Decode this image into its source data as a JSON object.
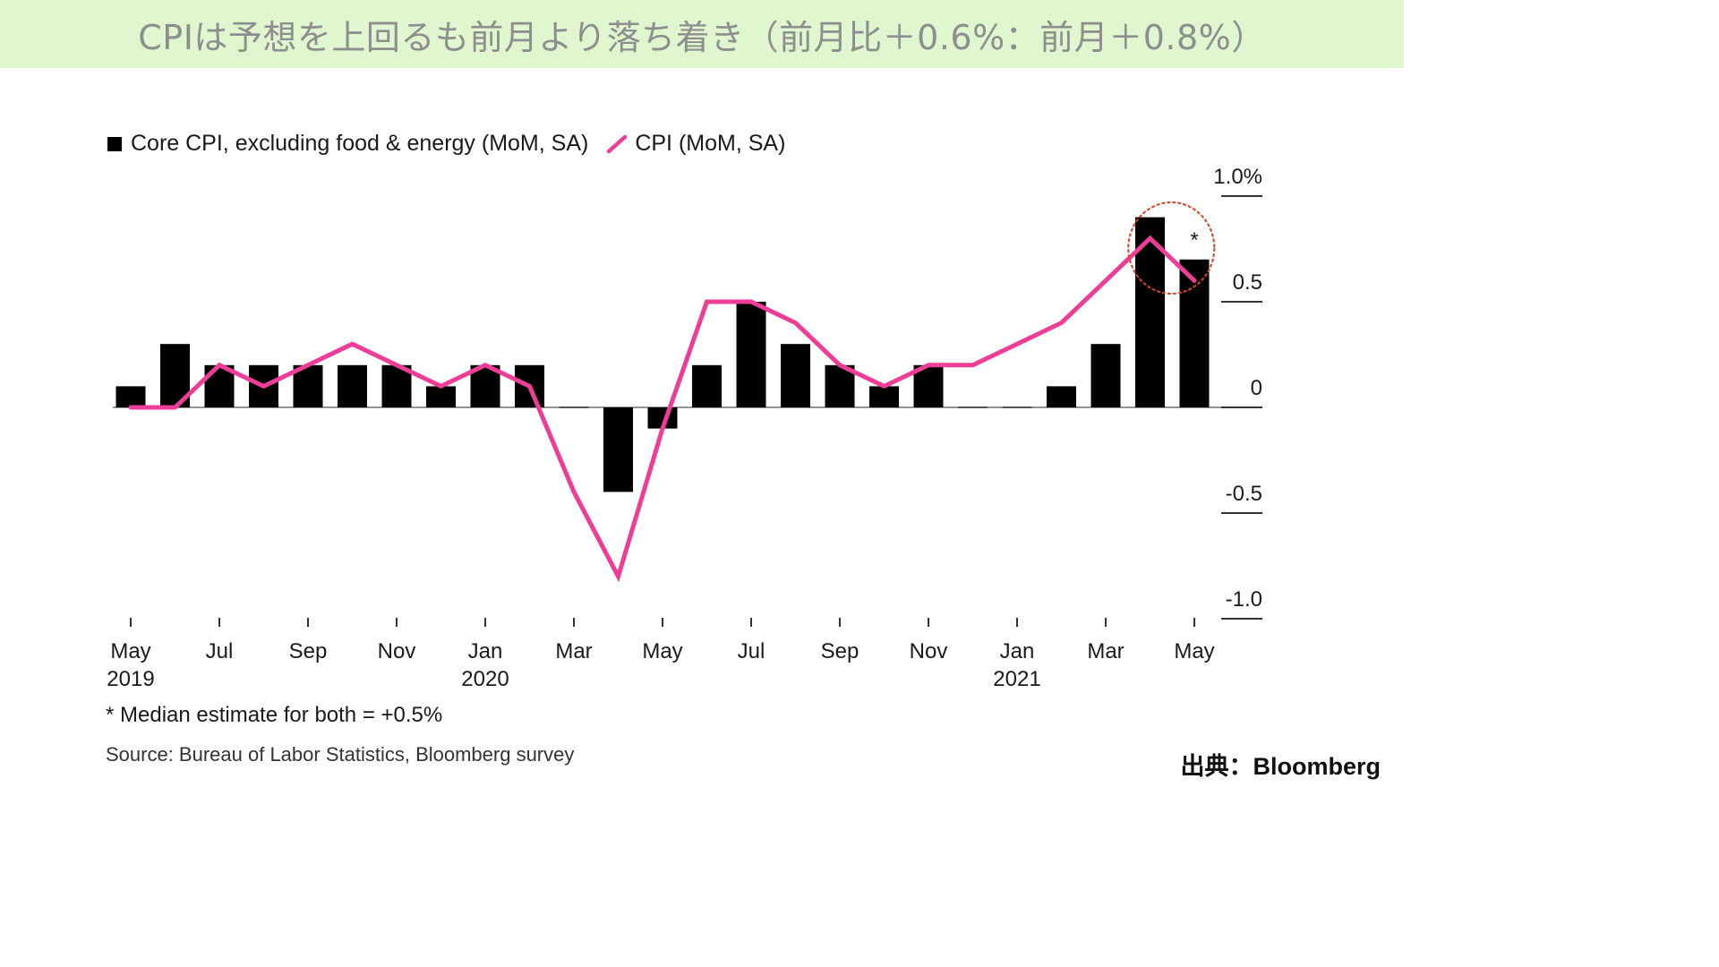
{
  "banner": {
    "title": "CPIは予想を上回るも前月より落ち着き（前月比＋0.6%：前月＋0.8%）"
  },
  "legend": {
    "core_label": "Core CPI, excluding food & energy (MoM, SA)",
    "cpi_label": "CPI (MoM, SA)"
  },
  "chart_data": {
    "type": "bar",
    "categories": [
      "May 2019",
      "Jun 2019",
      "Jul 2019",
      "Aug 2019",
      "Sep 2019",
      "Oct 2019",
      "Nov 2019",
      "Dec 2019",
      "Jan 2020",
      "Feb 2020",
      "Mar 2020",
      "Apr 2020",
      "May 2020",
      "Jun 2020",
      "Jul 2020",
      "Aug 2020",
      "Sep 2020",
      "Oct 2020",
      "Nov 2020",
      "Dec 2020",
      "Jan 2021",
      "Feb 2021",
      "Mar 2021",
      "Apr 2021",
      "May 2021"
    ],
    "series": [
      {
        "name": "Core CPI, excluding food & energy (MoM, SA)",
        "type": "bar",
        "values": [
          0.1,
          0.3,
          0.2,
          0.2,
          0.2,
          0.2,
          0.2,
          0.1,
          0.2,
          0.2,
          0.0,
          -0.4,
          -0.1,
          0.2,
          0.5,
          0.3,
          0.2,
          0.1,
          0.2,
          0.0,
          0.0,
          0.1,
          0.3,
          0.9,
          0.7
        ]
      },
      {
        "name": "CPI (MoM, SA)",
        "type": "line",
        "values": [
          0.0,
          0.0,
          0.2,
          0.1,
          0.2,
          0.3,
          0.2,
          0.1,
          0.2,
          0.1,
          -0.4,
          -0.8,
          -0.1,
          0.5,
          0.5,
          0.4,
          0.2,
          0.1,
          0.2,
          0.2,
          0.3,
          0.4,
          0.6,
          0.8,
          0.6
        ]
      }
    ],
    "ylim": [
      -1.0,
      1.0
    ],
    "y_ticks": [
      {
        "value": 1.0,
        "label": "1.0%"
      },
      {
        "value": 0.5,
        "label": "0.5"
      },
      {
        "value": 0,
        "label": "0"
      },
      {
        "value": -0.5,
        "label": "-0.5"
      },
      {
        "value": -1.0,
        "label": "-1.0"
      }
    ],
    "x_ticks": [
      {
        "index": 0,
        "label": "May",
        "year": "2019"
      },
      {
        "index": 2,
        "label": "Jul",
        "year": ""
      },
      {
        "index": 4,
        "label": "Sep",
        "year": ""
      },
      {
        "index": 6,
        "label": "Nov",
        "year": ""
      },
      {
        "index": 8,
        "label": "Jan",
        "year": "2020"
      },
      {
        "index": 10,
        "label": "Mar",
        "year": ""
      },
      {
        "index": 12,
        "label": "May",
        "year": ""
      },
      {
        "index": 14,
        "label": "Jul",
        "year": ""
      },
      {
        "index": 16,
        "label": "Sep",
        "year": ""
      },
      {
        "index": 18,
        "label": "Nov",
        "year": ""
      },
      {
        "index": 20,
        "label": "Jan",
        "year": "2021"
      },
      {
        "index": 22,
        "label": "Mar",
        "year": ""
      },
      {
        "index": 24,
        "label": "May",
        "year": ""
      }
    ],
    "annotations": {
      "asterisk": "*",
      "asterisk_index": 24,
      "highlight_circle_indices": [
        23,
        24
      ]
    },
    "legend_position": "top-left",
    "grid": false
  },
  "colors": {
    "bar": "#000000",
    "line": "#ee3d96",
    "circle": "#d9452c",
    "banner_bg": "#dff6cf",
    "banner_text": "#8e8e8e"
  },
  "footer": {
    "note": "* Median estimate for both = +0.5%",
    "source": "Source: Bureau of Labor Statistics, Bloomberg survey",
    "credit": "出典：Bloomberg"
  }
}
